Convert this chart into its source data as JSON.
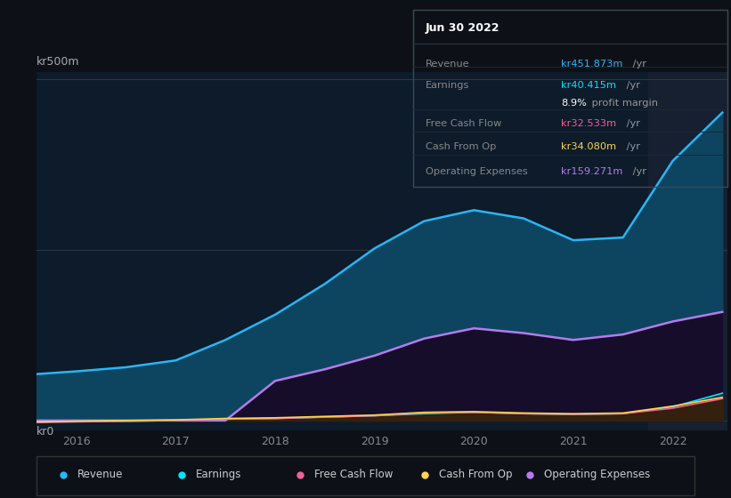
{
  "background_color": "#0d1117",
  "plot_bg_color": "#0d1b2a",
  "ylabel_top": "kr500m",
  "ylabel_bottom": "kr0",
  "x_ticks": [
    2016,
    2017,
    2018,
    2019,
    2020,
    2021,
    2022
  ],
  "years": [
    2015.6,
    2016.0,
    2016.5,
    2017.0,
    2017.5,
    2018.0,
    2018.5,
    2019.0,
    2019.5,
    2020.0,
    2020.5,
    2021.0,
    2021.5,
    2022.0,
    2022.5
  ],
  "revenue": [
    68,
    72,
    78,
    88,
    118,
    155,
    200,
    252,
    292,
    308,
    296,
    264,
    268,
    380,
    451
  ],
  "earnings": [
    -2,
    -1,
    -1,
    0,
    2,
    3,
    5,
    7,
    10,
    12,
    10,
    9,
    10,
    20,
    40
  ],
  "free_cash_flow": [
    -3,
    -2,
    -1,
    0,
    2,
    3,
    5,
    7,
    11,
    12,
    10,
    9,
    10,
    18,
    32
  ],
  "cash_from_op": [
    -2,
    -1,
    0,
    1,
    3,
    4,
    6,
    8,
    12,
    13,
    11,
    10,
    11,
    21,
    34
  ],
  "op_expenses": [
    0,
    0,
    0,
    0,
    0,
    58,
    75,
    95,
    120,
    135,
    128,
    118,
    126,
    145,
    159
  ],
  "revenue_color": "#29b6f6",
  "revenue_fill": "#0d4560",
  "earnings_color": "#00e5ff",
  "free_cash_flow_color": "#f06292",
  "cash_from_op_color": "#ffd54f",
  "op_expenses_color": "#b57bee",
  "op_expenses_fill": "#160d2a",
  "info_box_title": "Jun 30 2022",
  "info_rows": [
    {
      "label": "Revenue",
      "value": "kr451.873m",
      "suffix": " /yr",
      "color": "#29b6f6"
    },
    {
      "label": "Earnings",
      "value": "kr40.415m",
      "suffix": " /yr",
      "color": "#00e5ff"
    },
    {
      "label": "",
      "value": "8.9%",
      "suffix": " profit margin",
      "color": "#ffffff"
    },
    {
      "label": "Free Cash Flow",
      "value": "kr32.533m",
      "suffix": " /yr",
      "color": "#f06292"
    },
    {
      "label": "Cash From Op",
      "value": "kr34.080m",
      "suffix": " /yr",
      "color": "#ffd54f"
    },
    {
      "label": "Operating Expenses",
      "value": "kr159.271m",
      "suffix": " /yr",
      "color": "#b57bee"
    }
  ],
  "legend": [
    {
      "label": "Revenue",
      "color": "#29b6f6"
    },
    {
      "label": "Earnings",
      "color": "#00e5ff"
    },
    {
      "label": "Free Cash Flow",
      "color": "#f06292"
    },
    {
      "label": "Cash From Op",
      "color": "#ffd54f"
    },
    {
      "label": "Operating Expenses",
      "color": "#b57bee"
    }
  ],
  "highlight_x_start": 2021.75,
  "highlight_x_end": 2022.55,
  "highlight_bg": "#162030",
  "ylim": [
    -15,
    510
  ],
  "xlim": [
    2015.6,
    2022.55
  ]
}
